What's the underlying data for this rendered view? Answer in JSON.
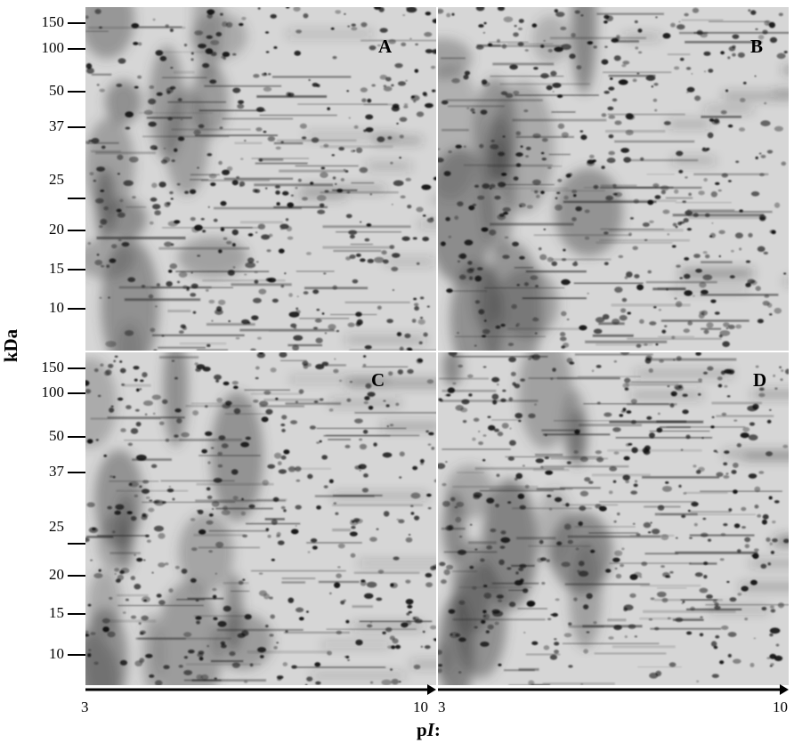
{
  "figure": {
    "panels": [
      {
        "id": "A",
        "label": "A"
      },
      {
        "id": "B",
        "label": "B"
      },
      {
        "id": "C",
        "label": "C"
      },
      {
        "id": "D",
        "label": "D"
      }
    ],
    "y_axis": {
      "title": "kDa",
      "ticks": [
        "150",
        "100",
        "50",
        "37",
        "25",
        "20",
        "15",
        "10"
      ]
    },
    "x_axis": {
      "title_main": "p",
      "title_italic": "I",
      "title_suffix": ":",
      "left_range": {
        "min": "3",
        "max": "10"
      },
      "right_range": {
        "min": "3",
        "max": "10"
      }
    }
  }
}
